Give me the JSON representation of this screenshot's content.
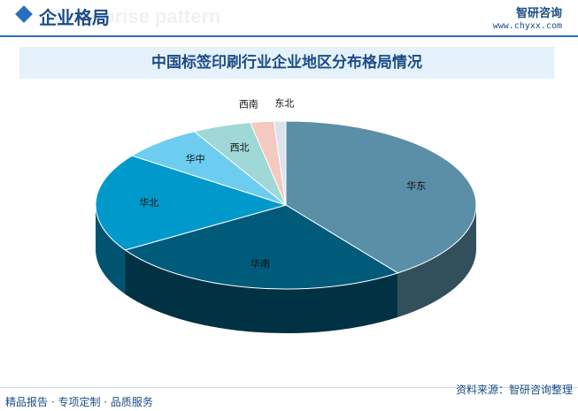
{
  "header": {
    "title": "企业格局",
    "subtitle": "Enterprise pattern",
    "logo": "智研咨询",
    "site": "www.chyxx.com"
  },
  "chart_data": {
    "type": "pie",
    "title": "中国标签印刷行业企业地区分布格局情况",
    "categories": [
      "华东",
      "华南",
      "华北",
      "华中",
      "西北",
      "西南",
      "东北"
    ],
    "values": [
      40,
      26,
      19,
      7,
      5,
      2,
      1
    ],
    "colors": [
      "#5b8fa8",
      "#005a7a",
      "#0099cc",
      "#6ccdf0",
      "#9fd8d6",
      "#f4c9c0",
      "#dde3ea"
    ]
  },
  "footer": {
    "left": "精品报告 · 专项定制 · 品质服务",
    "source": "资料来源：智研咨询整理"
  }
}
